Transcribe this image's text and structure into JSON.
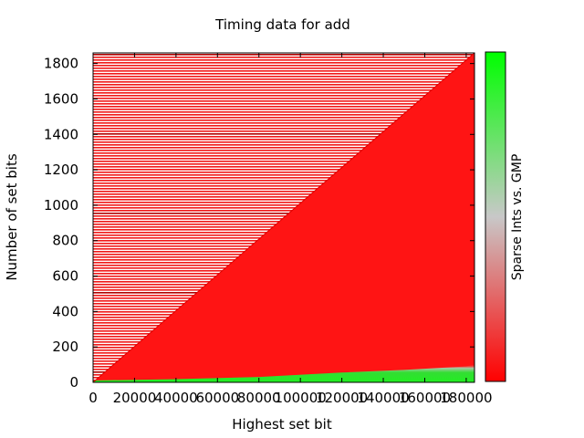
{
  "chart_data": {
    "type": "heatmap",
    "title": "Timing data for add",
    "xlabel": "Highest set bit",
    "ylabel": "Number of set bits",
    "colorbar_label": "Sparse Ints vs. GMP",
    "xlim": [
      0,
      184000
    ],
    "ylim": [
      0,
      1860
    ],
    "x_ticks": [
      0,
      20000,
      40000,
      60000,
      80000,
      100000,
      120000,
      140000,
      160000,
      180000
    ],
    "y_ticks": [
      0,
      200,
      400,
      600,
      800,
      1000,
      1200,
      1400,
      1600,
      1800
    ],
    "colormap": [
      "#ff0000",
      "#c8c8c8",
      "#00ff00"
    ],
    "region_upper_left": "sparse red rows (number of set bits exceeds highest set bit / 100, not measured)",
    "region_lower_right_color": "#ff1414",
    "green_band": {
      "description": "GMP faster only for very few set bits",
      "points": [
        [
          0,
          0
        ],
        [
          40000,
          8
        ],
        [
          80000,
          20
        ],
        [
          120000,
          45
        ],
        [
          150000,
          60
        ],
        [
          180000,
          80
        ]
      ]
    },
    "diagonal": [
      [
        0,
        0
      ],
      [
        184000,
        1860
      ]
    ]
  }
}
